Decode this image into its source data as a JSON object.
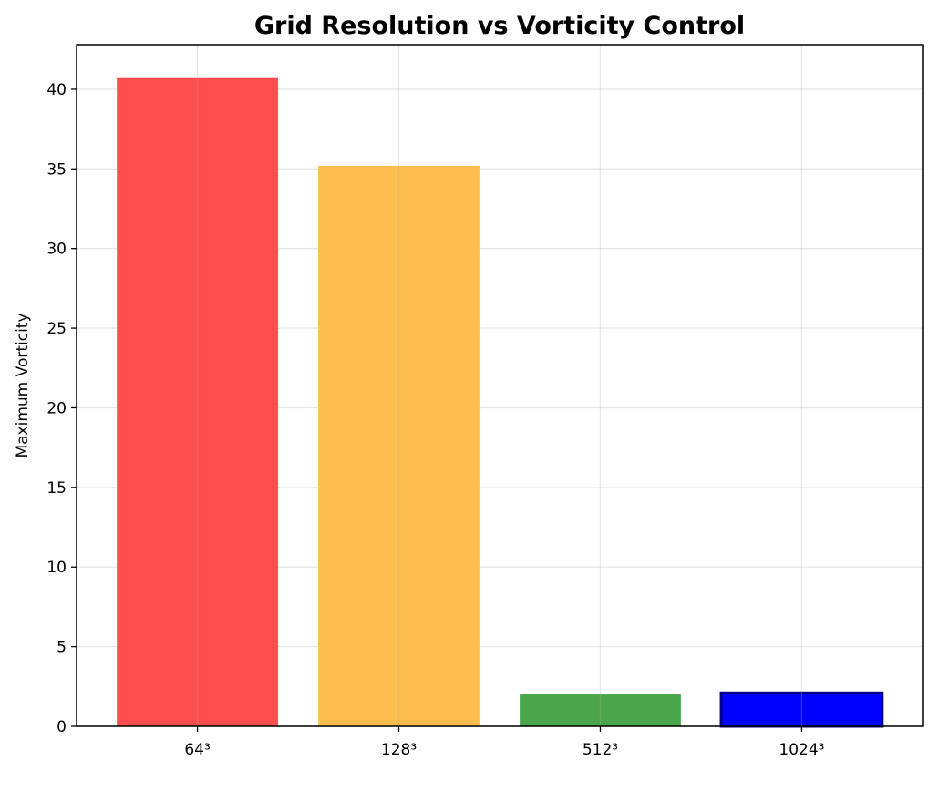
{
  "chart_data": {
    "type": "bar",
    "title": "Grid Resolution vs Vorticity Control",
    "xlabel": "",
    "ylabel": "Maximum Vorticity",
    "categories": [
      "64³",
      "128³",
      "512³",
      "1024³"
    ],
    "values": [
      40.7,
      35.2,
      2.0,
      2.1
    ],
    "colors": [
      "#ff4d4d",
      "#fdbe4f",
      "#4aa64a",
      "#0000ff"
    ],
    "edge_colors": [
      null,
      null,
      null,
      "#00008b"
    ],
    "ylim": [
      0,
      42.8
    ],
    "yticks": [
      0,
      5,
      10,
      15,
      20,
      25,
      30,
      35,
      40
    ],
    "grid": true,
    "legend": "none"
  }
}
